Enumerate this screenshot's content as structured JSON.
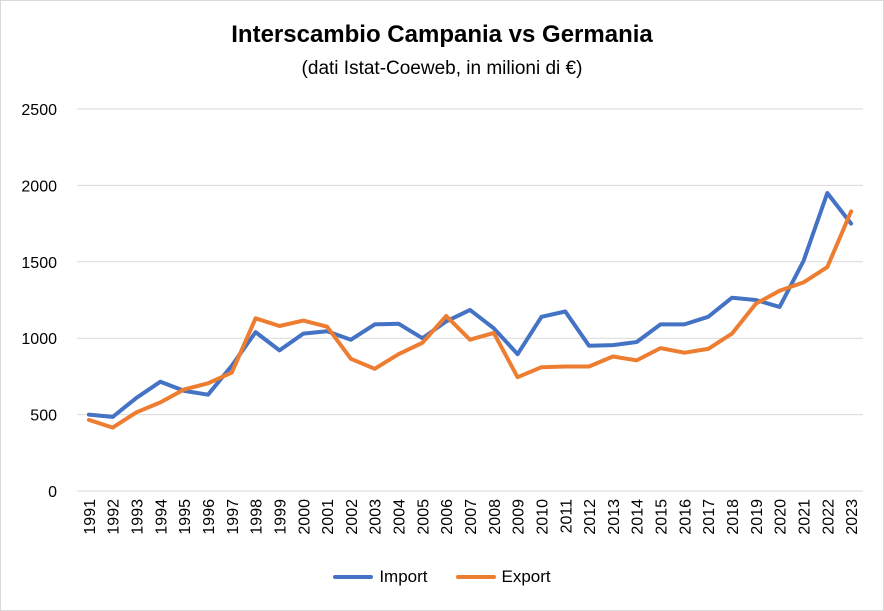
{
  "chart_data": {
    "type": "line",
    "title": "Interscambio Campania vs Germania",
    "subtitle": "(dati Istat-Coeweb, in milioni di €)",
    "xlabel": "",
    "ylabel": "",
    "ylim": [
      0,
      2500
    ],
    "yticks": [
      "0",
      "500",
      "1000",
      "1500",
      "2000",
      "2500"
    ],
    "grid": true,
    "legend_position": "bottom",
    "categories": [
      "1991",
      "1992",
      "1993",
      "1994",
      "1995",
      "1996",
      "1997",
      "1998",
      "1999",
      "2000",
      "2001",
      "2002",
      "2003",
      "2004",
      "2005",
      "2006",
      "2007",
      "2008",
      "2009",
      "2010",
      "2011",
      "2012",
      "2013",
      "2014",
      "2015",
      "2016",
      "2017",
      "2018",
      "2019",
      "2020",
      "2021",
      "2022",
      "2023"
    ],
    "series": [
      {
        "name": "Import",
        "color": "#4472c4",
        "values": [
          500,
          485,
          610,
          715,
          655,
          630,
          820,
          1040,
          920,
          1030,
          1045,
          990,
          1090,
          1095,
          1000,
          1110,
          1185,
          1065,
          895,
          1140,
          1175,
          950,
          955,
          975,
          1090,
          1090,
          1140,
          1265,
          1250,
          1205,
          1505,
          1950,
          1750
        ]
      },
      {
        "name": "Export",
        "color": "#ed7d31",
        "values": [
          465,
          415,
          515,
          580,
          665,
          705,
          775,
          1130,
          1080,
          1115,
          1075,
          865,
          800,
          895,
          970,
          1145,
          990,
          1035,
          745,
          810,
          815,
          815,
          880,
          855,
          935,
          905,
          930,
          1030,
          1225,
          1310,
          1365,
          1465,
          1830
        ]
      }
    ]
  }
}
